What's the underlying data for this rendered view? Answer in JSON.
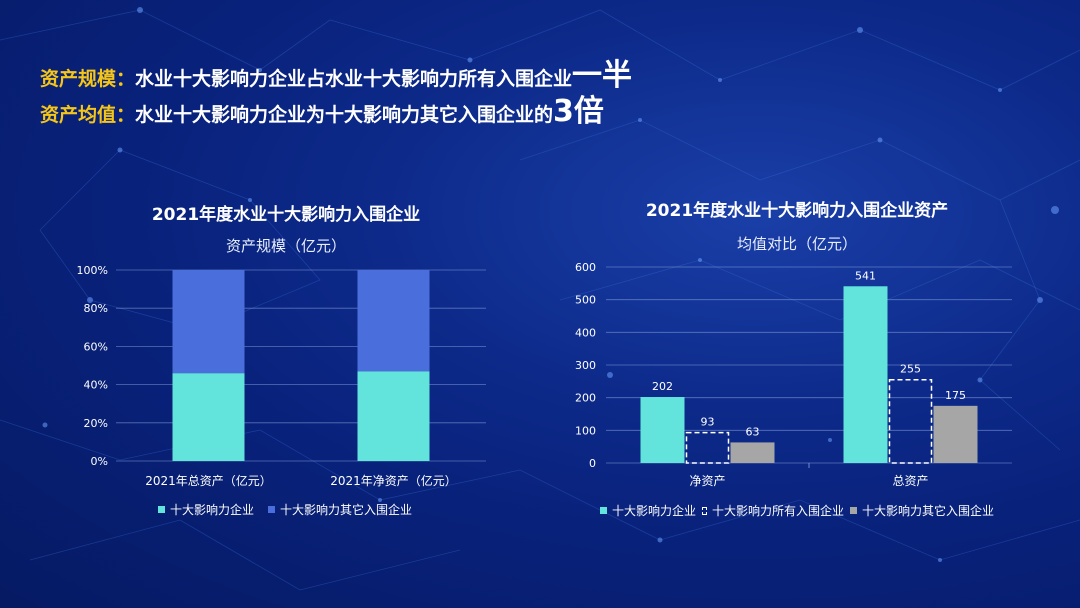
{
  "headlines": {
    "line1": {
      "key": "资产规模：",
      "text": "水业十大影响力企业占水业十大影响力所有入围企业",
      "emph": "一半"
    },
    "line2": {
      "key": "资产均值：",
      "text": "水业十大影响力企业为十大影响力其它入围企业的",
      "emph": "3倍"
    }
  },
  "colors": {
    "accent": "#f5c518",
    "teal": "#62e3dc",
    "blue": "#4a6fdc",
    "gray": "#a6a6a6"
  },
  "chart_data": [
    {
      "type": "bar",
      "stacked_percent": true,
      "title": "2021年度水业十大影响力入围企业",
      "subtitle": "资产规模（亿元）",
      "categories": [
        "2021年总资产（亿元）",
        "2021年净资产（亿元）"
      ],
      "series": [
        {
          "name": "十大影响力企业",
          "values": [
            46,
            47
          ],
          "color": "#62e3dc"
        },
        {
          "name": "十大影响力其它入围企业",
          "values": [
            54,
            53
          ],
          "color": "#4a6fdc"
        }
      ],
      "ylim": [
        0,
        100
      ],
      "yticks": [
        "0%",
        "20%",
        "40%",
        "60%",
        "80%",
        "100%"
      ],
      "grid": true,
      "legend": "bottom"
    },
    {
      "type": "bar",
      "title": "2021年度水业十大影响力入围企业资产",
      "subtitle": "均值对比（亿元）",
      "categories": [
        "净资产",
        "总资产"
      ],
      "series": [
        {
          "name": "十大影响力企业",
          "values": [
            202,
            541
          ],
          "color": "#62e3dc"
        },
        {
          "name": "十大影响力所有入围企业",
          "values": [
            93,
            255
          ],
          "color": "none"
        },
        {
          "name": "十大影响力其它入围企业",
          "values": [
            63,
            175
          ],
          "color": "#a6a6a6"
        }
      ],
      "ylim": [
        0,
        600
      ],
      "yticks": [
        "0",
        "100",
        "200",
        "300",
        "400",
        "500",
        "600"
      ],
      "grid": true,
      "legend": "bottom"
    }
  ]
}
